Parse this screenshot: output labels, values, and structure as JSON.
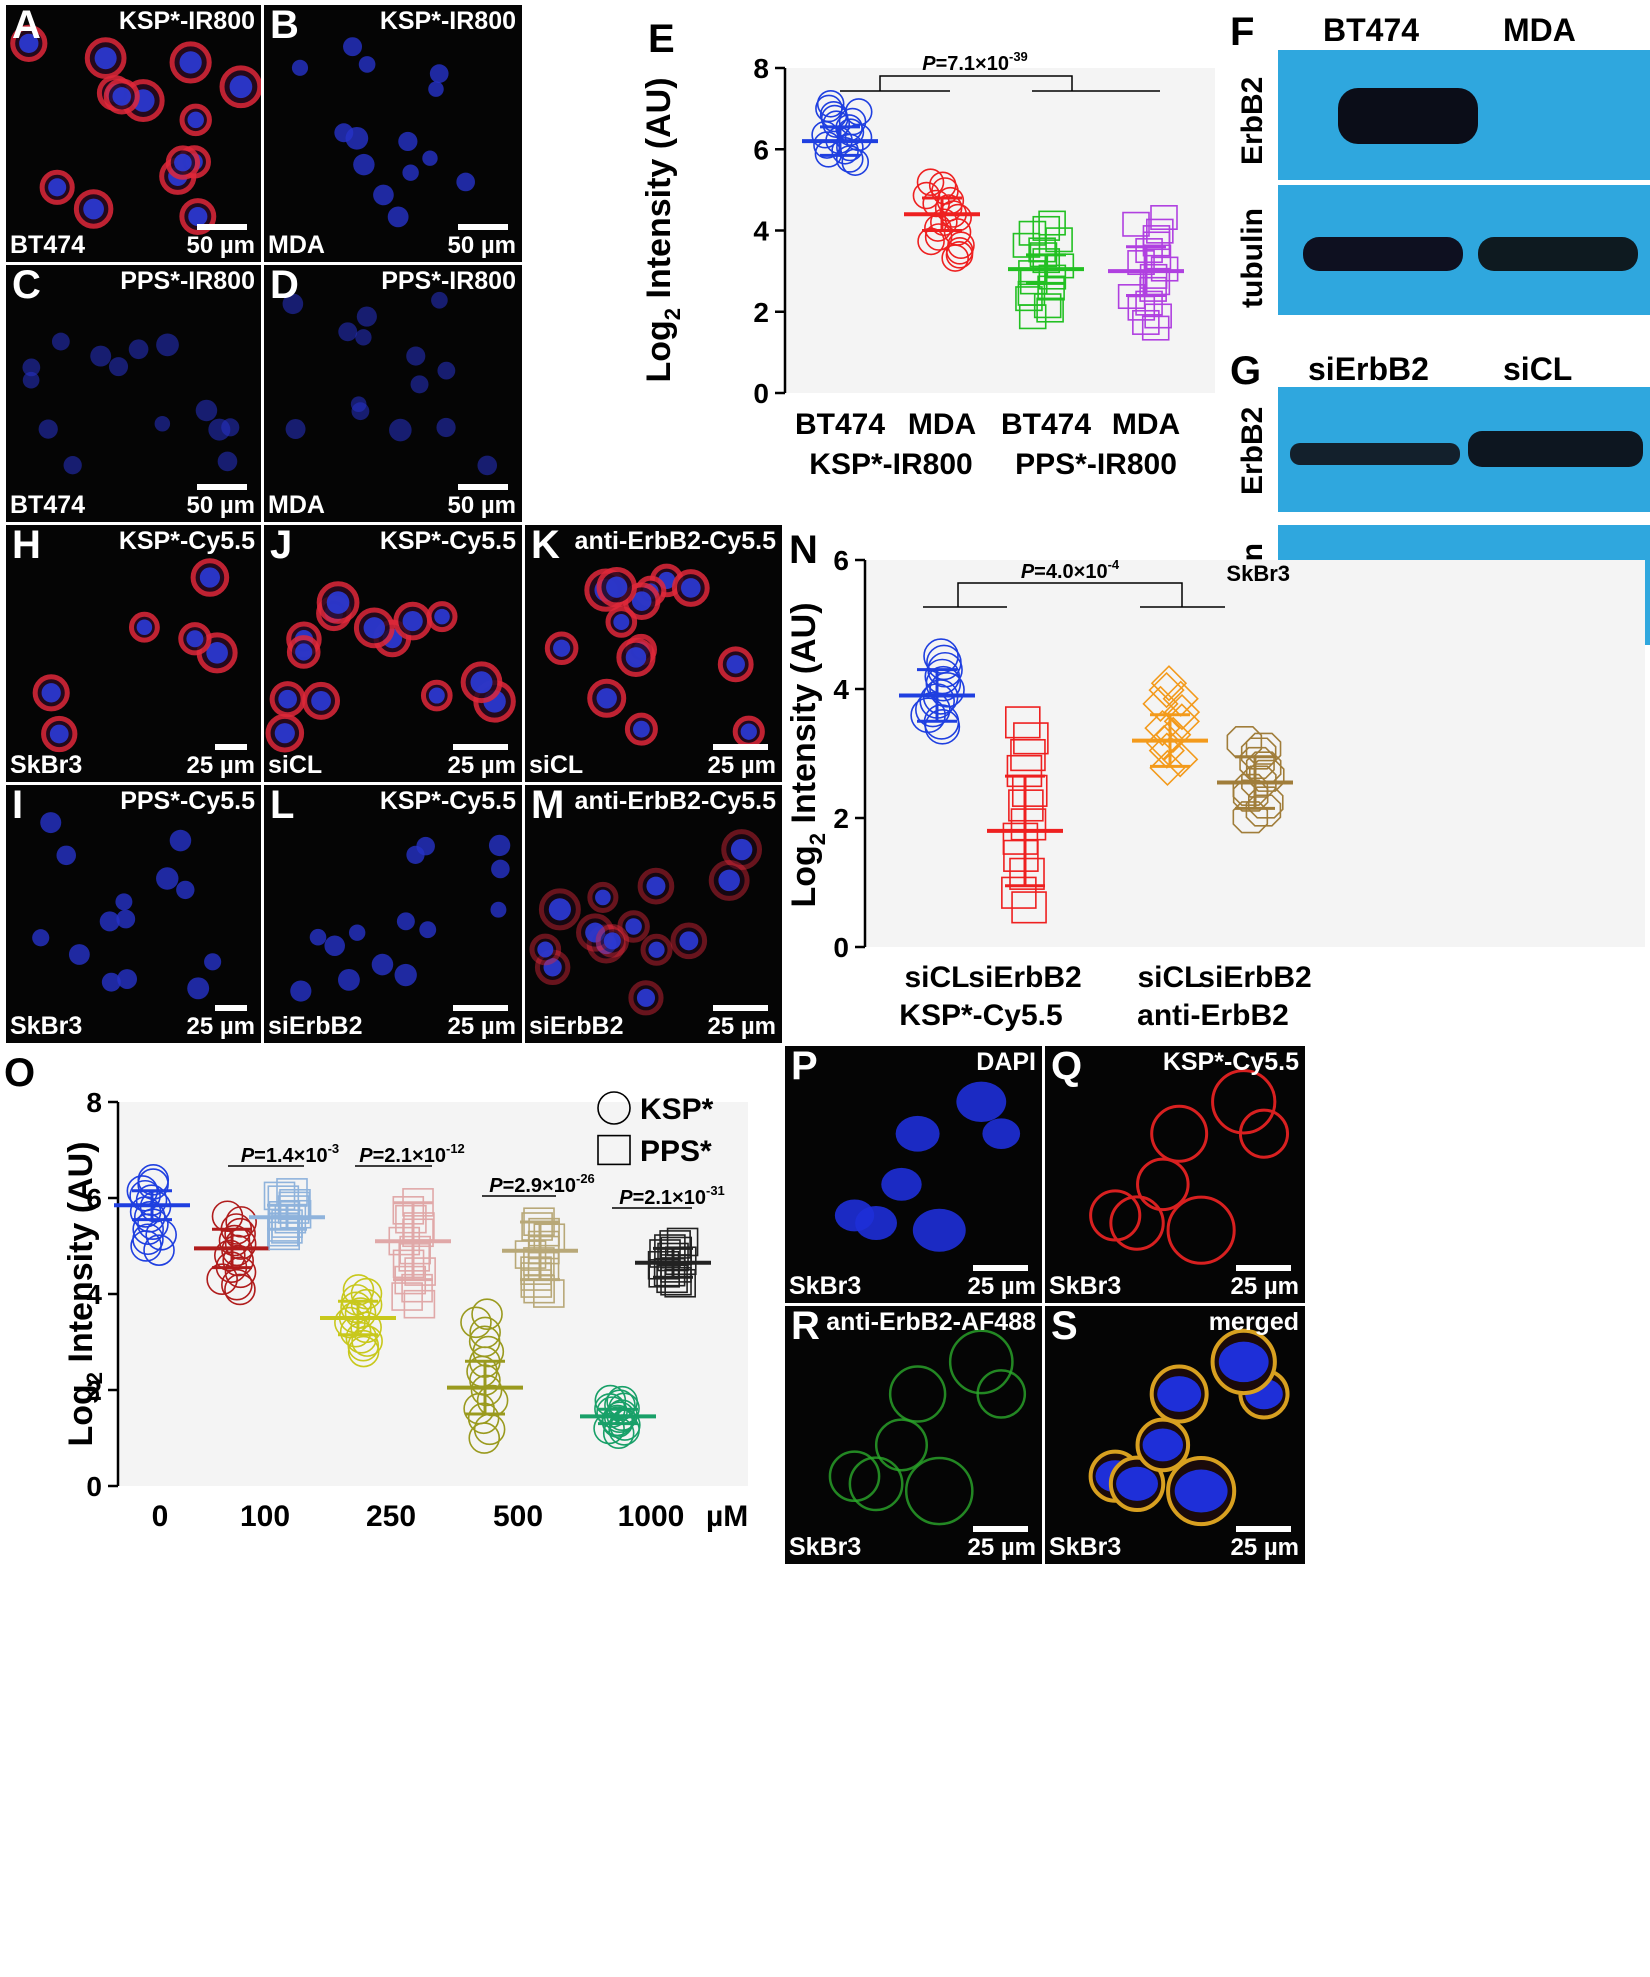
{
  "micro": {
    "A": {
      "letter": "A",
      "title": "KSP*-IR800",
      "cell": "BT474",
      "scale": "50 µm"
    },
    "B": {
      "letter": "B",
      "title": "KSP*-IR800",
      "cell": "MDA",
      "scale": "50 µm"
    },
    "C": {
      "letter": "C",
      "title": "PPS*-IR800",
      "cell": "BT474",
      "scale": "50 µm"
    },
    "D": {
      "letter": "D",
      "title": "PPS*-IR800",
      "cell": "MDA",
      "scale": "50 µm"
    },
    "H": {
      "letter": "H",
      "title": "KSP*-Cy5.5",
      "cell": "SkBr3",
      "scale": "25 µm"
    },
    "J": {
      "letter": "J",
      "title": "KSP*-Cy5.5",
      "cell": "siCL",
      "scale": "25 µm"
    },
    "K": {
      "letter": "K",
      "title": "anti-ErbB2-Cy5.5",
      "cell": "siCL",
      "scale": "25 µm"
    },
    "I": {
      "letter": "I",
      "title": "PPS*-Cy5.5",
      "cell": "SkBr3",
      "scale": "25 µm"
    },
    "L": {
      "letter": "L",
      "title": "KSP*-Cy5.5",
      "cell": "siErbB2",
      "scale": "25 µm"
    },
    "M": {
      "letter": "M",
      "title": "anti-ErbB2-Cy5.5",
      "cell": "siErbB2",
      "scale": "25 µm"
    },
    "P": {
      "letter": "P",
      "title": "DAPI",
      "cell": "SkBr3",
      "scale": "25 µm"
    },
    "Q": {
      "letter": "Q",
      "title": "KSP*-Cy5.5",
      "cell": "SkBr3",
      "scale": "25 µm"
    },
    "R": {
      "letter": "R",
      "title": "anti-ErbB2-AF488",
      "cell": "SkBr3",
      "scale": "25 µm"
    },
    "S": {
      "letter": "S",
      "title": "merged",
      "cell": "SkBr3",
      "scale": "25 µm"
    }
  },
  "blots": {
    "F": {
      "letter": "F",
      "lanes": [
        "BT474",
        "MDA"
      ],
      "rows": [
        "ErbB2",
        "tubulin"
      ]
    },
    "G": {
      "letter": "G",
      "lanes": [
        "siErbB2",
        "siCL"
      ],
      "rows": [
        "ErbB2",
        "tubulin"
      ]
    }
  },
  "colors": {
    "blue": "#1f3fe0",
    "red": "#ee2020",
    "green": "#22c022",
    "purple": "#b040e0",
    "orange": "#f39a1b",
    "tan": "#a07d3a",
    "darkred": "#b01c1c",
    "lightblue": "#8fb3dc",
    "olive": "#c8c81c",
    "rose": "#e0a8a8",
    "darkolive": "#9a9a1e",
    "khaki": "#b8a878",
    "teal": "#18a068",
    "black": "#222222",
    "blot_bg": "#2fa7de",
    "micro_bg": "#050505"
  },
  "chart_data": [
    {
      "panel": "E",
      "letter": "E",
      "type": "scatter",
      "ylabel": "Log2 Intensity (AU)",
      "ylim": [
        0,
        8
      ],
      "yticks": [
        "0",
        "2",
        "4",
        "6",
        "8"
      ],
      "categories": [
        "BT474",
        "MDA",
        "BT474",
        "MDA"
      ],
      "group_labels": [
        "KSP*-IR800",
        "PPS*-IR800"
      ],
      "pvalue": {
        "prefix": "P",
        "text": "=7.1×10",
        "exp": "-39"
      },
      "series": [
        {
          "category": "BT474",
          "group": "KSP*-IR800",
          "marker": "circle",
          "color": "blue",
          "mean": 6.2,
          "sd": 0.35,
          "min": 5.7,
          "max": 7.1
        },
        {
          "category": "MDA",
          "group": "KSP*-IR800",
          "marker": "circle",
          "color": "red",
          "mean": 4.4,
          "sd": 0.4,
          "min": 3.3,
          "max": 5.2
        },
        {
          "category": "BT474",
          "group": "PPS*-IR800",
          "marker": "square",
          "color": "green",
          "mean": 3.05,
          "sd": 0.35,
          "min": 1.9,
          "max": 4.2
        },
        {
          "category": "MDA",
          "group": "PPS*-IR800",
          "marker": "square",
          "color": "purple",
          "mean": 3.0,
          "sd": 0.6,
          "min": 1.6,
          "max": 4.3
        }
      ]
    },
    {
      "panel": "N",
      "letter": "N",
      "type": "scatter",
      "ylabel": "Log2 Intensity (AU)",
      "ylim": [
        0,
        6
      ],
      "yticks": [
        "0",
        "2",
        "4",
        "6"
      ],
      "categories": [
        "siCL",
        "siErbB2",
        "siCL",
        "siErbB2"
      ],
      "group_labels": [
        "KSP*-Cy5.5",
        "anti-ErbB2"
      ],
      "annotation": "SkBr3",
      "pvalue": {
        "prefix": "P",
        "text": "=4.0×10",
        "exp": "-4"
      },
      "series": [
        {
          "category": "siCL",
          "group": "KSP*-Cy5.5",
          "marker": "circle",
          "color": "blue",
          "mean": 3.9,
          "sd": 0.4,
          "min": 3.4,
          "max": 4.5
        },
        {
          "category": "siErbB2",
          "group": "KSP*-Cy5.5",
          "marker": "square",
          "color": "red",
          "mean": 1.8,
          "sd": 0.85,
          "min": 0.6,
          "max": 3.5
        },
        {
          "category": "siCL",
          "group": "anti-ErbB2",
          "marker": "diamond",
          "color": "orange",
          "mean": 3.2,
          "sd": 0.4,
          "min": 2.8,
          "max": 4.1
        },
        {
          "category": "siErbB2",
          "group": "anti-ErbB2",
          "marker": "hexagon",
          "color": "tan",
          "mean": 2.55,
          "sd": 0.4,
          "min": 2.0,
          "max": 3.2
        }
      ]
    },
    {
      "panel": "O",
      "letter": "O",
      "type": "scatter",
      "ylabel": "Log2 Intensity (AU)",
      "ylim": [
        0,
        8
      ],
      "yticks": [
        "0",
        "2",
        "4",
        "6",
        "8"
      ],
      "categories": [
        "0",
        "100",
        "250",
        "500",
        "1000"
      ],
      "unit": "µM",
      "legend": [
        {
          "marker": "circle",
          "label": "KSP*"
        },
        {
          "marker": "square",
          "label": "PPS*"
        }
      ],
      "pvalues": [
        {
          "prefix": "P",
          "text": "=1.4×10",
          "exp": "-3"
        },
        {
          "prefix": "P",
          "text": "=2.1×10",
          "exp": "-12"
        },
        {
          "prefix": "P",
          "text": "=2.9×10",
          "exp": "-26"
        },
        {
          "prefix": "P",
          "text": "=2.1×10",
          "exp": "-31"
        }
      ],
      "series": [
        {
          "category": "0",
          "name": "KSP*",
          "marker": "circle",
          "color": "blue",
          "mean": 5.85,
          "sd": 0.3,
          "min": 4.9,
          "max": 6.4
        },
        {
          "category": "100",
          "name": "KSP*",
          "marker": "circle",
          "color": "darkred",
          "mean": 4.95,
          "sd": 0.4,
          "min": 4.1,
          "max": 5.6
        },
        {
          "category": "100",
          "name": "PPS*",
          "marker": "square",
          "color": "lightblue",
          "mean": 5.6,
          "sd": 0.25,
          "min": 5.2,
          "max": 6.1
        },
        {
          "category": "250",
          "name": "KSP*",
          "marker": "circle",
          "color": "olive",
          "mean": 3.5,
          "sd": 0.35,
          "min": 2.8,
          "max": 4.1
        },
        {
          "category": "250",
          "name": "PPS*",
          "marker": "square",
          "color": "rose",
          "mean": 5.1,
          "sd": 0.8,
          "min": 3.8,
          "max": 5.9
        },
        {
          "category": "500",
          "name": "KSP*",
          "marker": "circle",
          "color": "darkolive",
          "mean": 2.05,
          "sd": 0.55,
          "min": 1.0,
          "max": 3.6
        },
        {
          "category": "500",
          "name": "PPS*",
          "marker": "square",
          "color": "khaki",
          "mean": 4.9,
          "sd": 0.6,
          "min": 4.0,
          "max": 5.5
        },
        {
          "category": "1000",
          "name": "KSP*",
          "marker": "circle",
          "color": "teal",
          "mean": 1.45,
          "sd": 0.15,
          "min": 1.1,
          "max": 1.8
        },
        {
          "category": "1000",
          "name": "PPS*",
          "marker": "square",
          "color": "black",
          "mean": 4.65,
          "sd": 0.3,
          "min": 4.2,
          "max": 5.1
        }
      ]
    }
  ]
}
